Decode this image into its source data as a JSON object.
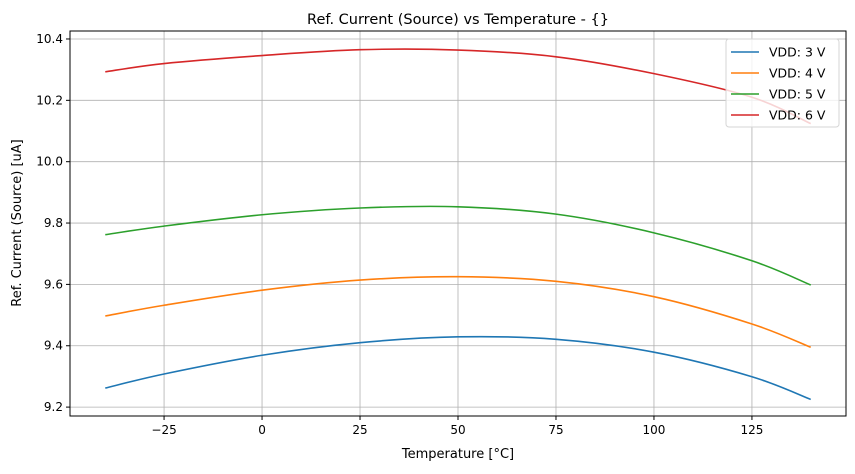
{
  "chart_data": {
    "type": "line",
    "title": "Ref. Current (Source) vs Temperature - {}",
    "xlabel": "Temperature [°C]",
    "ylabel": "Ref. Current (Source) [uA]",
    "xlim": [
      -49,
      149
    ],
    "ylim": [
      9.171,
      10.426
    ],
    "xticks": [
      -25,
      0,
      25,
      50,
      75,
      100,
      125
    ],
    "yticks": [
      9.2,
      9.4,
      9.6,
      9.8,
      10.0,
      10.2,
      10.4
    ],
    "xtick_labels": [
      "−25",
      "0",
      "25",
      "50",
      "75",
      "100",
      "125"
    ],
    "ytick_labels": [
      "9.2",
      "9.4",
      "9.6",
      "9.8",
      "10.0",
      "10.2",
      "10.4"
    ],
    "grid": true,
    "legend_position": "top-right",
    "x": [
      -40,
      -25,
      0,
      25,
      50,
      75,
      100,
      125,
      140
    ],
    "series": [
      {
        "name": "VDD: 3 V",
        "color": "#1f77b4",
        "values": [
          9.262,
          9.308,
          9.369,
          9.41,
          9.429,
          9.421,
          9.379,
          9.299,
          9.225
        ]
      },
      {
        "name": "VDD: 4 V",
        "color": "#ff7f0e",
        "values": [
          9.497,
          9.532,
          9.581,
          9.614,
          9.625,
          9.61,
          9.56,
          9.471,
          9.395
        ]
      },
      {
        "name": "VDD: 5 V",
        "color": "#2ca02c",
        "values": [
          9.762,
          9.79,
          9.827,
          9.849,
          9.853,
          9.829,
          9.768,
          9.677,
          9.598
        ]
      },
      {
        "name": "VDD: 6 V",
        "color": "#d62728",
        "values": [
          10.293,
          10.32,
          10.346,
          10.365,
          10.364,
          10.342,
          10.287,
          10.21,
          10.124
        ]
      }
    ]
  }
}
